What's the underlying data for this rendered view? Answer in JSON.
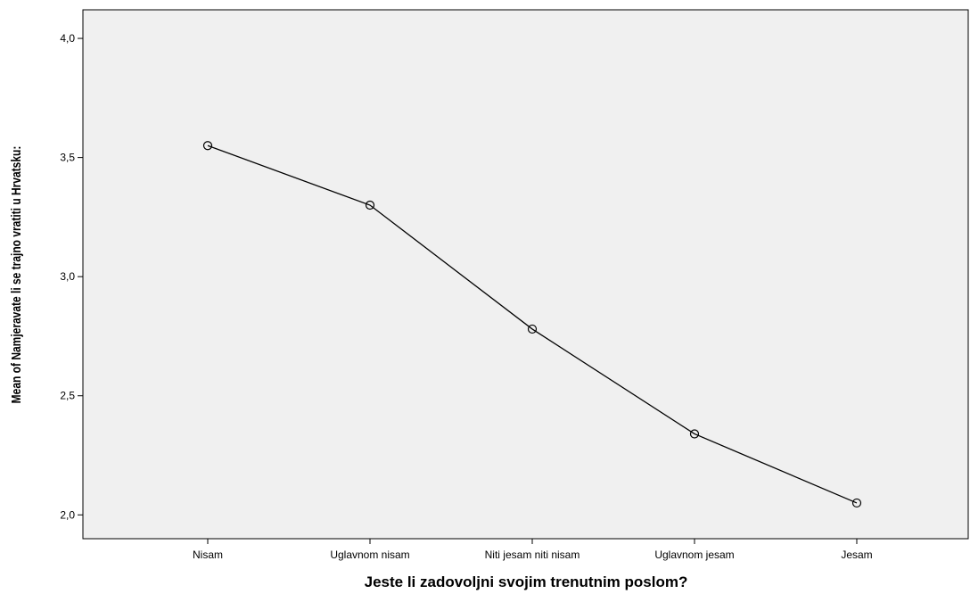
{
  "chart_data": {
    "type": "line",
    "xlabel": "Jeste li zadovoljni svojim trenutnim poslom?",
    "ylabel": "Mean of Namjeravate li se trajno vratiti u Hrvatsku:",
    "categories": [
      "Nisam",
      "Uglavnom nisam",
      "Niti jesam niti nisam",
      "Uglavnom jesam",
      "Jesam"
    ],
    "values": [
      3.55,
      3.3,
      2.78,
      2.34,
      2.05
    ],
    "ylim": [
      1.9,
      4.12
    ],
    "yticks": [
      "2,0",
      "2,5",
      "3,0",
      "3,5",
      "4,0"
    ],
    "ytick_values": [
      2.0,
      2.5,
      3.0,
      3.5,
      4.0
    ],
    "grid": false,
    "marker": "circle",
    "colors": {
      "plot_bg": "#f0f0f0",
      "line": "#000000"
    }
  }
}
